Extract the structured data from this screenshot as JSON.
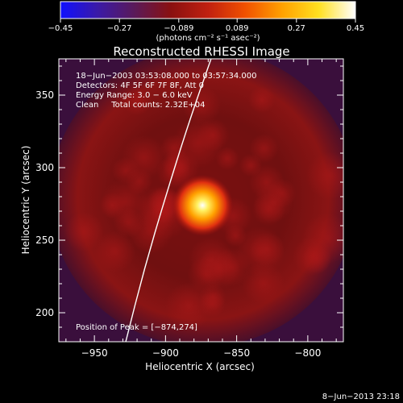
{
  "chart_data": {
    "type": "heatmap",
    "title": "Reconstructed RHESSI Image",
    "xlabel": "Heliocentric X (arcsec)",
    "ylabel": "Heliocentric Y (arcsec)",
    "xlim": [
      -975,
      -775
    ],
    "ylim": [
      180,
      375
    ],
    "x_ticks": [
      -950,
      -900,
      -850,
      -800
    ],
    "x_tick_labels": [
      "−950",
      "−900",
      "−850",
      "−800"
    ],
    "y_ticks": [
      200,
      250,
      300,
      350
    ],
    "y_tick_labels": [
      "200",
      "250",
      "300",
      "350"
    ],
    "colorbar": {
      "range": [
        -0.45,
        0.45
      ],
      "ticks": [
        -0.45,
        -0.27,
        -0.089,
        0.089,
        0.27,
        0.45
      ],
      "tick_labels": [
        "−0.45",
        "−0.27",
        "−0.089",
        "0.089",
        "0.27",
        "0.45"
      ],
      "label": "(photons cm⁻² s⁻¹ asec⁻²)",
      "colormap": [
        "#1010ff",
        "#3a1aa8",
        "#5a1a5a",
        "#8a1010",
        "#c02010",
        "#f05000",
        "#ffa000",
        "#ffe020",
        "#ffffff"
      ]
    },
    "info_lines": [
      "18−Jun−2003 03:53:08.000 to 03:57:34.000",
      "Detectors: 4F 5F 6F 7F 8F, Att 0",
      "Energy Range: 3.0 − 6.0 keV",
      "Clean     Total counts: 2.32E+04"
    ],
    "peak_label": "Position of Peak = [−874,274]",
    "peak": {
      "x": -874,
      "y": 274,
      "value": 0.45
    },
    "limb_curve": [
      [
        -928,
        180
      ],
      [
        -915,
        230
      ],
      [
        -900,
        280
      ],
      [
        -884,
        330
      ],
      [
        -868,
        375
      ]
    ],
    "footer_date": "8−Jun−2013 23:18"
  }
}
